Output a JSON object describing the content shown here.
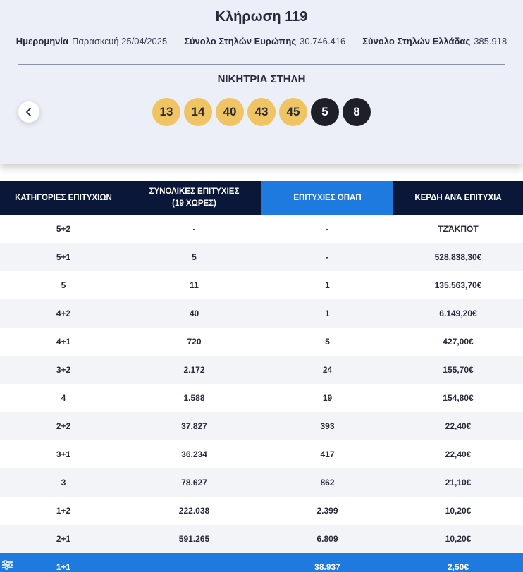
{
  "draw": {
    "title": "Κλήρωση 119",
    "date_label": "Ημερομηνία",
    "date_value": "Παρασκευή 25/04/2025",
    "europe_label": "Σύνολο Στηλών Ευρώπης",
    "europe_value": "30.746.416",
    "greece_label": "Σύνολο Στηλών Ελλάδας",
    "greece_value": "385.918",
    "winning_title": "ΝΙΚΗΤΡΙΑ ΣΤΗΛΗ",
    "prev_icon": "chevron-left-icon",
    "main_numbers": [
      "13",
      "14",
      "40",
      "43",
      "45"
    ],
    "star_numbers": [
      "5",
      "8"
    ],
    "main_color": "#f0c462",
    "star_color": "#1d2028"
  },
  "table": {
    "headers": {
      "categories": "ΚΑΤΗΓΟΡΙΕΣ ΕΠΙΤΥΧΙΩΝ",
      "total_line1": "ΣΥΝΟΛΙΚΕΣ ΕΠΙΤΥΧΙΕΣ",
      "total_line2": "(19 ΧΩΡΕΣ)",
      "opap": "ΕΠΙΤΥΧΙΕΣ ΟΠΑΠ",
      "prize": "ΚΕΡΔΗ ΑΝΆ ΕΠΙΤΥΧΙΑ"
    },
    "header_color": "#0b1738",
    "accent_color": "#1f7ae0",
    "rows": [
      {
        "category": "5+2",
        "total": "-",
        "opap": "-",
        "prize": "ΤΖΆΚΠΟΤ"
      },
      {
        "category": "5+1",
        "total": "5",
        "opap": "-",
        "prize": "528.838,30€"
      },
      {
        "category": "5",
        "total": "11",
        "opap": "1",
        "prize": "135.563,70€"
      },
      {
        "category": "4+2",
        "total": "40",
        "opap": "1",
        "prize": "6.149,20€"
      },
      {
        "category": "4+1",
        "total": "720",
        "opap": "5",
        "prize": "427,00€"
      },
      {
        "category": "3+2",
        "total": "2.172",
        "opap": "24",
        "prize": "155,70€"
      },
      {
        "category": "4",
        "total": "1.588",
        "opap": "19",
        "prize": "154,80€"
      },
      {
        "category": "2+2",
        "total": "37.827",
        "opap": "393",
        "prize": "22,40€"
      },
      {
        "category": "3+1",
        "total": "36.234",
        "opap": "417",
        "prize": "22,40€"
      },
      {
        "category": "3",
        "total": "78.627",
        "opap": "862",
        "prize": "21,10€"
      },
      {
        "category": "1+2",
        "total": "222.038",
        "opap": "2.399",
        "prize": "10,20€"
      },
      {
        "category": "2+1",
        "total": "591.265",
        "opap": "6.809",
        "prize": "10,20€"
      },
      {
        "category": "1+1",
        "total": "",
        "opap": "38.937",
        "prize": "2,50€"
      }
    ],
    "side_icon": "sliders-icon"
  }
}
